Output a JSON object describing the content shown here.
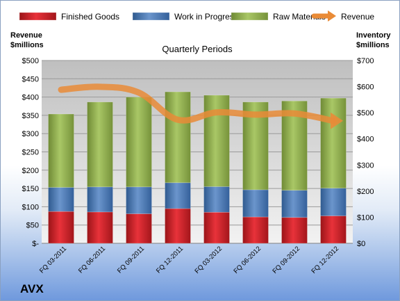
{
  "chart_data": {
    "type": "bar",
    "title": "Quarterly Periods",
    "left_axis_title": [
      "Revenue",
      "$millions"
    ],
    "right_axis_title": [
      "Inventory",
      "$millions"
    ],
    "categories": [
      "FQ 03-2011",
      "FQ 06-2011",
      "FQ 09-2011",
      "FQ 12-2011",
      "FQ 03-2012",
      "FQ 06-2012",
      "FQ 09-2012",
      "FQ 12-2012"
    ],
    "left_ticks": [
      "$-",
      "$50",
      "$100",
      "$150",
      "$200",
      "$250",
      "$300",
      "$350",
      "$400",
      "$450",
      "$500"
    ],
    "right_ticks": [
      "$0",
      "$100",
      "$200",
      "$300",
      "$400",
      "$500",
      "$600",
      "$700"
    ],
    "ylim_left": [
      0,
      500
    ],
    "ylim_right": [
      0,
      700
    ],
    "stacked_series": [
      {
        "name": "Finished Goods",
        "color": "#e0232c",
        "values": [
          122,
          120,
          113,
          133,
          119,
          101,
          99,
          105
        ]
      },
      {
        "name": "Work in Progress",
        "color": "#4f81bd",
        "values": [
          92,
          96,
          103,
          99,
          98,
          104,
          104,
          106
        ]
      },
      {
        "name": "Raw Materials",
        "color": "#9bbb59",
        "values": [
          281,
          325,
          344,
          348,
          350,
          336,
          342,
          345
        ]
      }
    ],
    "line_series": {
      "name": "Revenue",
      "color": "#e98b37",
      "axis": "left",
      "values": [
        420,
        428,
        412,
        338,
        358,
        352,
        355,
        335
      ]
    },
    "grid": true,
    "legend_position": "top"
  },
  "company": "AVX"
}
